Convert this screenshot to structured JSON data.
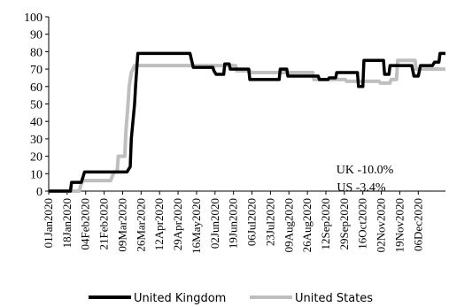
{
  "chart_data": {
    "type": "line",
    "x_axis": {
      "type": "date",
      "range": [
        "2020-01-01",
        "2020-12-31"
      ],
      "tick_labels": [
        "01Jan2020",
        "18Jan2020",
        "04Feb2020",
        "21Feb2020",
        "09Mar2020",
        "26Mar2020",
        "12Apr2020",
        "29Apr2020",
        "16May2020",
        "02Jun2020",
        "19Jun2020",
        "06Jul2020",
        "23Jul2020",
        "09Aug2020",
        "26Aug2020",
        "12Sep2020",
        "29Sep2020",
        "16Oct2020",
        "02Nov2020",
        "19Nov2020",
        "06Dec2020"
      ]
    },
    "y_axis": {
      "range": [
        0,
        100
      ],
      "ticks": [
        0,
        10,
        20,
        30,
        40,
        50,
        60,
        70,
        80,
        90,
        100
      ]
    },
    "grid": false,
    "legend_position": "bottom",
    "annotations": [
      "UK -10.0%",
      "US -3.4%"
    ],
    "series": [
      {
        "name": "United Kingdom",
        "color": "#000000",
        "points": [
          [
            "2020-01-01",
            0
          ],
          [
            "2020-01-21",
            0
          ],
          [
            "2020-01-22",
            5
          ],
          [
            "2020-01-31",
            5
          ],
          [
            "2020-02-03",
            11
          ],
          [
            "2020-03-11",
            11
          ],
          [
            "2020-03-13",
            11
          ],
          [
            "2020-03-16",
            14
          ],
          [
            "2020-03-17",
            30
          ],
          [
            "2020-03-20",
            50
          ],
          [
            "2020-03-21",
            61
          ],
          [
            "2020-03-23",
            79
          ],
          [
            "2020-05-10",
            79
          ],
          [
            "2020-05-13",
            71
          ],
          [
            "2020-05-31",
            71
          ],
          [
            "2020-06-01",
            69
          ],
          [
            "2020-06-03",
            67
          ],
          [
            "2020-06-10",
            67
          ],
          [
            "2020-06-11",
            73
          ],
          [
            "2020-06-15",
            73
          ],
          [
            "2020-06-16",
            70
          ],
          [
            "2020-07-03",
            70
          ],
          [
            "2020-07-04",
            64
          ],
          [
            "2020-07-31",
            64
          ],
          [
            "2020-08-01",
            70
          ],
          [
            "2020-08-07",
            70
          ],
          [
            "2020-08-08",
            66
          ],
          [
            "2020-09-05",
            66
          ],
          [
            "2020-09-06",
            64
          ],
          [
            "2020-09-14",
            64
          ],
          [
            "2020-09-15",
            65
          ],
          [
            "2020-09-21",
            65
          ],
          [
            "2020-09-22",
            68
          ],
          [
            "2020-10-11",
            68
          ],
          [
            "2020-10-12",
            60
          ],
          [
            "2020-10-16",
            60
          ],
          [
            "2020-10-17",
            75
          ],
          [
            "2020-11-04",
            75
          ],
          [
            "2020-11-05",
            67
          ],
          [
            "2020-11-09",
            67
          ],
          [
            "2020-11-10",
            72
          ],
          [
            "2020-11-30",
            72
          ],
          [
            "2020-12-02",
            66
          ],
          [
            "2020-12-06",
            66
          ],
          [
            "2020-12-08",
            72
          ],
          [
            "2020-12-19",
            72
          ],
          [
            "2020-12-21",
            74
          ],
          [
            "2020-12-25",
            74
          ],
          [
            "2020-12-26",
            79
          ],
          [
            "2020-12-31",
            79
          ]
        ]
      },
      {
        "name": "United States",
        "color": "#bfbfbf",
        "points": [
          [
            "2020-01-01",
            0
          ],
          [
            "2020-01-29",
            0
          ],
          [
            "2020-02-01",
            6
          ],
          [
            "2020-02-27",
            6
          ],
          [
            "2020-03-01",
            11
          ],
          [
            "2020-03-04",
            11
          ],
          [
            "2020-03-05",
            20
          ],
          [
            "2020-03-11",
            20
          ],
          [
            "2020-03-12",
            34
          ],
          [
            "2020-03-14",
            50
          ],
          [
            "2020-03-15",
            60
          ],
          [
            "2020-03-17",
            68
          ],
          [
            "2020-03-20",
            72
          ],
          [
            "2020-05-15",
            72
          ],
          [
            "2020-06-21",
            72
          ],
          [
            "2020-06-22",
            69
          ],
          [
            "2020-07-04",
            69
          ],
          [
            "2020-07-05",
            68
          ],
          [
            "2020-08-31",
            68
          ],
          [
            "2020-09-01",
            64
          ],
          [
            "2020-09-30",
            64
          ],
          [
            "2020-10-01",
            63
          ],
          [
            "2020-10-31",
            63
          ],
          [
            "2020-11-01",
            62
          ],
          [
            "2020-11-10",
            62
          ],
          [
            "2020-11-11",
            64
          ],
          [
            "2020-11-16",
            64
          ],
          [
            "2020-11-17",
            75
          ],
          [
            "2020-12-03",
            75
          ],
          [
            "2020-12-04",
            70
          ],
          [
            "2020-12-31",
            70
          ]
        ]
      }
    ]
  }
}
